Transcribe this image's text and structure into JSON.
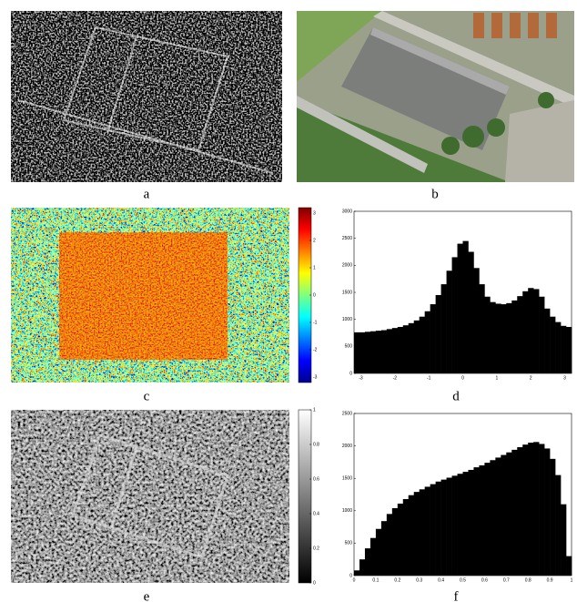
{
  "panels": {
    "labels": [
      "a",
      "b",
      "c",
      "d",
      "e",
      "f"
    ]
  },
  "colorbars": [
    {
      "lim": [
        -3.2,
        3.2
      ],
      "ticks": [
        -3,
        -2,
        -1,
        0,
        1,
        2,
        3
      ]
    },
    {
      "lim": [
        0,
        1
      ],
      "ticks": [
        0,
        0.2,
        0.4,
        0.6,
        0.8,
        1
      ]
    }
  ],
  "chart_data": [
    {
      "type": "histogram",
      "color": "#000000",
      "bins": [
        -3.2,
        -3.04,
        -2.88,
        -2.72,
        -2.56,
        -2.4,
        -2.24,
        -2.08,
        -1.92,
        -1.76,
        -1.6,
        -1.44,
        -1.28,
        -1.12,
        -0.96,
        -0.8,
        -0.64,
        -0.48,
        -0.32,
        -0.16,
        0,
        0.16,
        0.32,
        0.48,
        0.64,
        0.8,
        0.96,
        1.12,
        1.28,
        1.44,
        1.6,
        1.76,
        1.92,
        2.08,
        2.24,
        2.4,
        2.56,
        2.72,
        2.88,
        3.04,
        3.2
      ],
      "values": [
        760,
        760,
        770,
        780,
        790,
        800,
        820,
        840,
        860,
        890,
        930,
        980,
        1050,
        1150,
        1280,
        1450,
        1650,
        1900,
        2150,
        2400,
        2450,
        2250,
        1950,
        1650,
        1420,
        1320,
        1290,
        1280,
        1300,
        1350,
        1430,
        1520,
        1580,
        1560,
        1420,
        1200,
        1050,
        950,
        880,
        860
      ],
      "xlim": [
        -3.2,
        3.2
      ],
      "xticks": [
        -3,
        -2,
        -1,
        0,
        1,
        2,
        3
      ],
      "ylim": [
        0,
        3000
      ],
      "yticks": [
        0,
        500,
        1000,
        1500,
        2000,
        2500,
        3000
      ]
    },
    {
      "type": "histogram",
      "color": "#000000",
      "bins": [
        0,
        0.025,
        0.05,
        0.075,
        0.1,
        0.125,
        0.15,
        0.175,
        0.2,
        0.225,
        0.25,
        0.275,
        0.3,
        0.325,
        0.35,
        0.375,
        0.4,
        0.425,
        0.45,
        0.475,
        0.5,
        0.525,
        0.55,
        0.575,
        0.6,
        0.625,
        0.65,
        0.675,
        0.7,
        0.725,
        0.75,
        0.775,
        0.8,
        0.825,
        0.85,
        0.875,
        0.9,
        0.925,
        0.95,
        0.975,
        1
      ],
      "values": [
        80,
        250,
        420,
        580,
        720,
        840,
        950,
        1040,
        1110,
        1180,
        1240,
        1290,
        1330,
        1370,
        1410,
        1450,
        1480,
        1510,
        1540,
        1570,
        1600,
        1630,
        1670,
        1700,
        1740,
        1780,
        1820,
        1860,
        1900,
        1940,
        1980,
        2020,
        2050,
        2060,
        2030,
        1960,
        1800,
        1550,
        1100,
        300
      ],
      "xlim": [
        0,
        1
      ],
      "xticks": [
        0,
        0.1,
        0.2,
        0.3,
        0.4,
        0.5,
        0.6,
        0.7,
        0.8,
        0.9,
        1
      ],
      "ylim": [
        0,
        2500
      ],
      "yticks": [
        0,
        500,
        1000,
        1500,
        2000,
        2500
      ]
    }
  ]
}
